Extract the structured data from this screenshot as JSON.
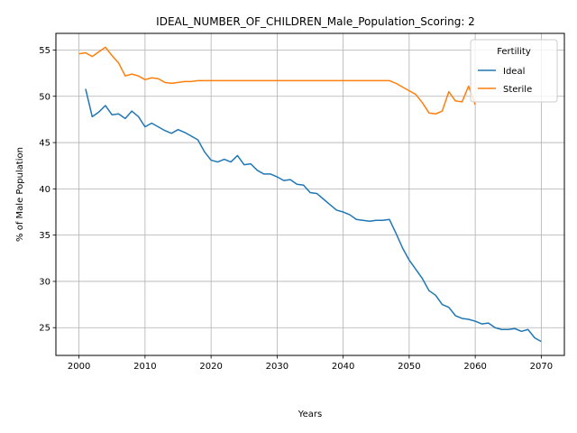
{
  "chart_data": {
    "type": "line",
    "title": "IDEAL_NUMBER_OF_CHILDREN_Male_Population_Scoring: 2",
    "xlabel": "Years",
    "ylabel": "% of Male Population",
    "xlim": [
      1996.5,
      2073.5
    ],
    "ylim": [
      22.0,
      56.8
    ],
    "xticks": [
      2000,
      2010,
      2020,
      2030,
      2040,
      2050,
      2060,
      2070
    ],
    "yticks": [
      25,
      30,
      35,
      40,
      45,
      50,
      55
    ],
    "grid": true,
    "legend": {
      "title": "Fertility",
      "placement": "top-right"
    },
    "series": [
      {
        "name": "Ideal",
        "color": "#1f77b4",
        "x": [
          2001,
          2002,
          2003,
          2004,
          2005,
          2006,
          2007,
          2008,
          2009,
          2010,
          2011,
          2012,
          2013,
          2014,
          2015,
          2016,
          2017,
          2018,
          2019,
          2020,
          2021,
          2022,
          2023,
          2024,
          2025,
          2026,
          2027,
          2028,
          2029,
          2030,
          2031,
          2032,
          2033,
          2034,
          2035,
          2036,
          2037,
          2038,
          2039,
          2040,
          2041,
          2042,
          2043,
          2044,
          2045,
          2046,
          2047,
          2048,
          2049,
          2050,
          2051,
          2052,
          2053,
          2054,
          2055,
          2056,
          2057,
          2058,
          2059,
          2060,
          2061,
          2062,
          2063,
          2064,
          2065,
          2066,
          2067,
          2068,
          2069,
          2070
        ],
        "values": [
          50.8,
          47.8,
          48.3,
          49.0,
          48.0,
          48.1,
          47.6,
          48.4,
          47.8,
          46.7,
          47.1,
          46.7,
          46.3,
          46.0,
          46.4,
          46.1,
          45.7,
          45.3,
          44.0,
          43.1,
          42.9,
          43.2,
          42.9,
          43.6,
          42.6,
          42.7,
          42.0,
          41.6,
          41.6,
          41.3,
          40.9,
          41.0,
          40.5,
          40.4,
          39.6,
          39.5,
          38.9,
          38.3,
          37.7,
          37.5,
          37.2,
          36.7,
          36.6,
          36.5,
          36.6,
          36.6,
          36.7,
          35.2,
          33.6,
          32.3,
          31.3,
          30.3,
          29.0,
          28.5,
          27.5,
          27.2,
          26.3,
          26.0,
          25.9,
          25.7,
          25.4,
          25.5,
          25.0,
          24.8,
          24.8,
          24.9,
          24.6,
          24.8,
          23.9,
          23.5
        ]
      },
      {
        "name": "Sterile",
        "color": "#ff7f0e",
        "x": [
          2000,
          2001,
          2002,
          2003,
          2004,
          2005,
          2006,
          2007,
          2008,
          2009,
          2010,
          2011,
          2012,
          2013,
          2014,
          2015,
          2016,
          2017,
          2018,
          2019,
          2020,
          2021,
          2022,
          2023,
          2024,
          2025,
          2026,
          2027,
          2028,
          2029,
          2030,
          2031,
          2032,
          2033,
          2034,
          2035,
          2036,
          2037,
          2038,
          2039,
          2040,
          2041,
          2042,
          2043,
          2044,
          2045,
          2046,
          2047,
          2048,
          2049,
          2050,
          2051,
          2052,
          2053,
          2054,
          2055,
          2056,
          2057,
          2058,
          2059,
          2060
        ],
        "values": [
          54.6,
          54.7,
          54.3,
          54.8,
          55.3,
          54.4,
          53.6,
          52.2,
          52.4,
          52.2,
          51.8,
          52.0,
          51.9,
          51.5,
          51.4,
          51.5,
          51.6,
          51.6,
          51.7,
          51.7,
          51.7,
          51.7,
          51.7,
          51.7,
          51.7,
          51.7,
          51.7,
          51.7,
          51.7,
          51.7,
          51.7,
          51.7,
          51.7,
          51.7,
          51.7,
          51.7,
          51.7,
          51.7,
          51.7,
          51.7,
          51.7,
          51.7,
          51.7,
          51.7,
          51.7,
          51.7,
          51.7,
          51.7,
          51.4,
          51.0,
          50.6,
          50.2,
          49.3,
          48.2,
          48.1,
          48.4,
          50.5,
          49.5,
          49.4,
          51.1,
          49.1
        ]
      }
    ]
  }
}
